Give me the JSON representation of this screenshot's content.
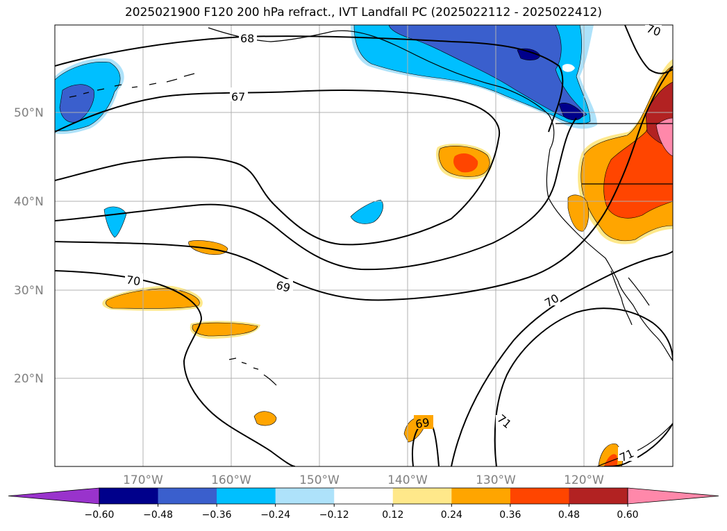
{
  "title": "2025021900 F120 200 hPa refract., IVT Landfall PC (2025022112 - 2025022412)",
  "map": {
    "lat_labels": [
      "50°N",
      "40°N",
      "30°N",
      "20°N"
    ],
    "lon_labels": [
      "170°W",
      "160°W",
      "150°W",
      "140°W",
      "130°W",
      "120°W"
    ],
    "contour_labels": [
      "67",
      "68",
      "69",
      "70",
      "70",
      "70",
      "71",
      "71",
      "69"
    ]
  },
  "colorbar": {
    "ticks": [
      "−0.60",
      "−0.48",
      "−0.36",
      "−0.24",
      "−0.12",
      "0.12",
      "0.24",
      "0.36",
      "0.48",
      "0.60"
    ],
    "colors": [
      "#9933cc",
      "#00008b",
      "#3a5fcd",
      "#00bfff",
      "#aee2fa",
      "#ffffff",
      "#ffe88a",
      "#ffa500",
      "#ff4500",
      "#b22222",
      "#ff88aa"
    ]
  }
}
